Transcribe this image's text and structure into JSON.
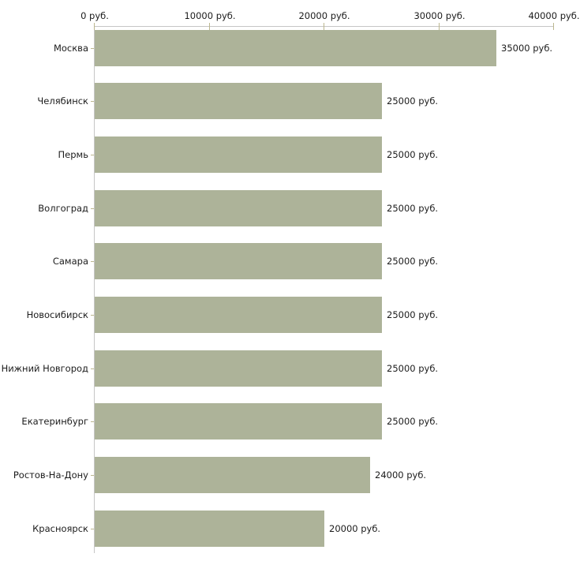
{
  "chart_data": {
    "type": "bar",
    "orientation": "horizontal",
    "title": "",
    "xlabel": "",
    "ylabel": "",
    "xlim": [
      0,
      40000
    ],
    "x_tick_values": [
      0,
      10000,
      20000,
      30000,
      40000
    ],
    "x_tick_labels": [
      "0 руб.",
      "10000 руб.",
      "20000 руб.",
      "30000 руб.",
      "40000 руб."
    ],
    "categories": [
      "Москва",
      "Челябинск",
      "Пермь",
      "Волгоград",
      "Самара",
      "Новосибирск",
      "Нижний Новгород",
      "Екатеринбург",
      "Ростов-На-Дону",
      "Красноярск"
    ],
    "values": [
      35000,
      25000,
      25000,
      25000,
      25000,
      25000,
      25000,
      25000,
      24000,
      20000
    ],
    "value_labels": [
      "35000 руб.",
      "25000 руб.",
      "25000 руб.",
      "25000 руб.",
      "25000 руб.",
      "25000 руб.",
      "25000 руб.",
      "25000 руб.",
      "24000 руб.",
      "20000 руб."
    ],
    "grid": false,
    "legend": false,
    "colors": {
      "bar": "#adb399",
      "axis_line": "#c6c6c6",
      "tick": "#bcb78f",
      "text": "#1c1c1c",
      "background": "#ffffff"
    }
  }
}
